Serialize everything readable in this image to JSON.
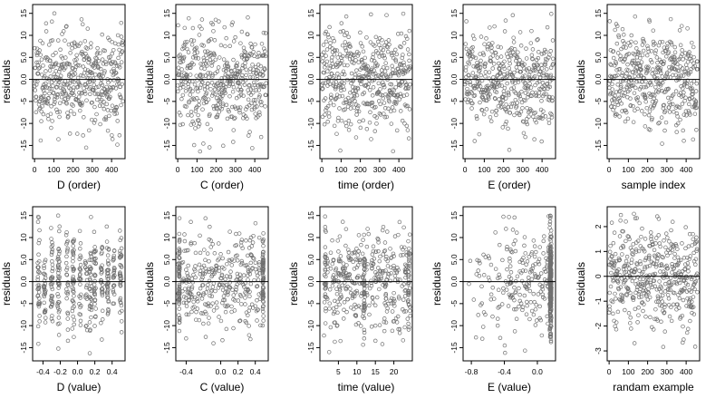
{
  "chart_data": [
    {
      "type": "scatter",
      "xlabel": "D (order)",
      "ylabel": "residuals",
      "xlim": [
        -10,
        470
      ],
      "ylim": [
        -18,
        17
      ],
      "xticks": [
        0,
        100,
        200,
        300,
        400
      ],
      "yticks": [
        -15,
        -10,
        -5,
        0,
        5,
        10,
        15
      ],
      "ytick_labels": [
        "-15",
        "-10",
        "-5",
        "0.0",
        "5.0",
        "10",
        "15"
      ],
      "reference_y": 0,
      "gen": {
        "kind": "index",
        "n": 460,
        "sd": 5.5,
        "tail": 15,
        "seed": 11
      }
    },
    {
      "type": "scatter",
      "xlabel": "C (order)",
      "ylabel": "residuals",
      "xlim": [
        -10,
        470
      ],
      "ylim": [
        -18,
        17
      ],
      "xticks": [
        0,
        100,
        200,
        300,
        400
      ],
      "yticks": [
        -15,
        -10,
        -5,
        0,
        5,
        10,
        15
      ],
      "ytick_labels": [
        "-15",
        "-10",
        "-5",
        "0.0",
        "5.0",
        "10",
        "15"
      ],
      "reference_y": 0,
      "gen": {
        "kind": "index",
        "n": 460,
        "sd": 5.5,
        "tail": 15,
        "seed": 22
      }
    },
    {
      "type": "scatter",
      "xlabel": "time (order)",
      "ylabel": "residuals",
      "xlim": [
        -10,
        470
      ],
      "ylim": [
        -18,
        17
      ],
      "xticks": [
        0,
        100,
        200,
        300,
        400
      ],
      "yticks": [
        -15,
        -10,
        -5,
        0,
        5,
        10,
        15
      ],
      "ytick_labels": [
        "-15",
        "-10",
        "-5",
        "0.0",
        "5.0",
        "10",
        "15"
      ],
      "reference_y": 0,
      "gen": {
        "kind": "index",
        "n": 460,
        "sd": 5.5,
        "tail": 15,
        "seed": 33
      }
    },
    {
      "type": "scatter",
      "xlabel": "E (order)",
      "ylabel": "residuals",
      "xlim": [
        -10,
        470
      ],
      "ylim": [
        -18,
        17
      ],
      "xticks": [
        0,
        100,
        200,
        300,
        400
      ],
      "yticks": [
        -15,
        -10,
        -5,
        0,
        5,
        10,
        15
      ],
      "ytick_labels": [
        "-15",
        "-10",
        "-5",
        "0.0",
        "5.0",
        "10",
        "15"
      ],
      "reference_y": 0,
      "gen": {
        "kind": "index",
        "n": 460,
        "sd": 5.5,
        "tail": 15,
        "seed": 44
      }
    },
    {
      "type": "scatter",
      "xlabel": "sample index",
      "ylabel": "residuals",
      "xlim": [
        -10,
        470
      ],
      "ylim": [
        -18,
        17
      ],
      "xticks": [
        0,
        100,
        200,
        300,
        400
      ],
      "yticks": [
        -15,
        -10,
        -5,
        0,
        5,
        10,
        15
      ],
      "ytick_labels": [
        "-15",
        "-10",
        "-5",
        "0.0",
        "5.0",
        "10",
        "15"
      ],
      "reference_y": 0,
      "gen": {
        "kind": "index",
        "n": 460,
        "sd": 5.5,
        "tail": 15,
        "seed": 55
      }
    },
    {
      "type": "scatter",
      "xlabel": "D (value)",
      "ylabel": "residuals",
      "xlim": [
        -0.52,
        0.55
      ],
      "ylim": [
        -18,
        17
      ],
      "xticks": [
        -0.4,
        -0.2,
        0.0,
        0.2,
        0.4
      ],
      "xtick_labels": [
        "-0.4",
        "-0.2",
        "0.0",
        "0.2",
        "0.4"
      ],
      "yticks": [
        -15,
        -10,
        -5,
        0,
        5,
        10,
        15
      ],
      "ytick_labels": [
        "-15",
        "-10",
        "-5",
        "0.0",
        "5.0",
        "10",
        "15"
      ],
      "reference_y": 0,
      "gen": {
        "kind": "discrete",
        "n": 460,
        "sd": 5.5,
        "tail": 15,
        "seed": 66,
        "levels": [
          -0.45,
          -0.38,
          -0.3,
          -0.22,
          -0.12,
          -0.05,
          0.03,
          0.1,
          0.15,
          0.2,
          0.28,
          0.35,
          0.42,
          0.5
        ],
        "jitter": 0.012
      }
    },
    {
      "type": "scatter",
      "xlabel": "C (value)",
      "ylabel": "residuals",
      "xlim": [
        -0.52,
        0.55
      ],
      "ylim": [
        -18,
        17
      ],
      "xticks": [
        -0.4,
        0.0,
        0.2,
        0.4
      ],
      "xtick_labels": [
        "-0.4",
        "0.0",
        "0.2",
        "0.4"
      ],
      "yticks": [
        -15,
        -10,
        -5,
        0,
        5,
        10,
        15
      ],
      "ytick_labels": [
        "-15",
        "-10",
        "-5",
        "0.0",
        "5.0",
        "10",
        "15"
      ],
      "reference_y": 0,
      "gen": {
        "kind": "mixed",
        "n": 460,
        "sd": 5.5,
        "tail": 15,
        "seed": 77,
        "columns": [
          -0.48,
          0.49
        ],
        "col_frac": 0.3,
        "range": [
          -0.5,
          0.5
        ]
      }
    },
    {
      "type": "scatter",
      "xlabel": "time (value)",
      "ylabel": "residuals",
      "xlim": [
        0,
        25
      ],
      "ylim": [
        -18,
        17
      ],
      "xticks": [
        5,
        10,
        15,
        20
      ],
      "yticks": [
        -15,
        -10,
        -5,
        0,
        5,
        10,
        15
      ],
      "ytick_labels": [
        "-15",
        "-10",
        "-5",
        "0.0",
        "5.0",
        "10",
        "15"
      ],
      "reference_y": 0,
      "gen": {
        "kind": "mixed",
        "n": 460,
        "sd": 5.5,
        "tail": 15,
        "seed": 88,
        "columns": [
          1.5,
          12,
          24
        ],
        "col_frac": 0.2,
        "range": [
          1,
          24.5
        ]
      }
    },
    {
      "type": "scatter",
      "xlabel": "E (value)",
      "ylabel": "residuals",
      "xlim": [
        -0.9,
        0.22
      ],
      "ylim": [
        -18,
        17
      ],
      "xticks": [
        -0.8,
        -0.4,
        0.0
      ],
      "xtick_labels": [
        "-0.8",
        "-0.4",
        "0.0"
      ],
      "yticks": [
        -15,
        -10,
        -5,
        0,
        5,
        10,
        15
      ],
      "ytick_labels": [
        "-15",
        "-10",
        "-5",
        "0.0",
        "5.0",
        "10",
        "15"
      ],
      "reference_y": 0,
      "gen": {
        "kind": "skew",
        "n": 460,
        "sd": 5.5,
        "tail": 15,
        "seed": 99,
        "column_x": 0.16,
        "col_frac": 0.55,
        "range": [
          -0.85,
          0.15
        ]
      }
    },
    {
      "type": "scatter",
      "xlabel": "randam example",
      "ylabel": "residuals",
      "xlim": [
        -10,
        470
      ],
      "ylim": [
        -3.4,
        2.8
      ],
      "xticks": [
        0,
        100,
        200,
        300,
        400
      ],
      "yticks": [
        -3,
        -2,
        -1,
        0,
        1,
        2
      ],
      "ytick_labels": [
        "-3",
        "-2",
        "-1",
        "0",
        "1",
        "2"
      ],
      "reference_y": 0,
      "gen": {
        "kind": "index",
        "n": 460,
        "sd": 1.0,
        "tail": 2.6,
        "seed": 123
      }
    }
  ]
}
